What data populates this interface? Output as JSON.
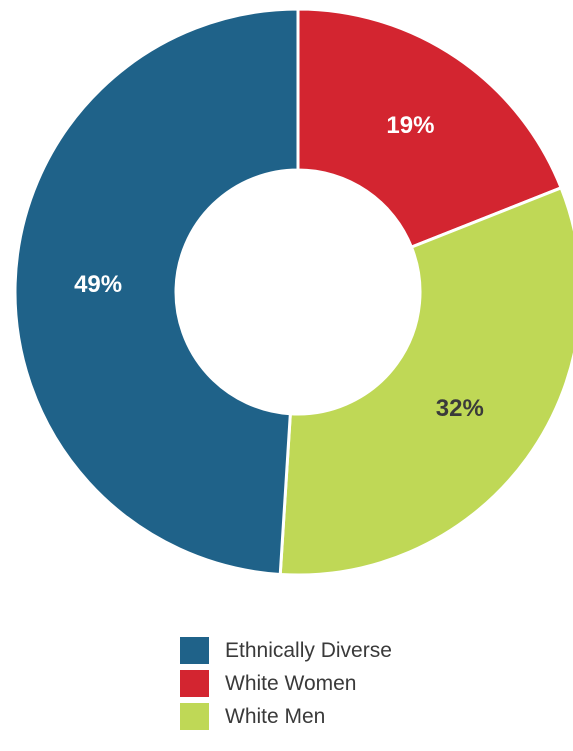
{
  "chart_data": {
    "type": "pie",
    "variant": "donut",
    "title": "",
    "slices": [
      {
        "label": "Ethnically Diverse",
        "value": 49,
        "display": "49%",
        "color": "#1f6289",
        "label_color": "#ffffff"
      },
      {
        "label": "White Women",
        "value": 19,
        "display": "19%",
        "color": "#d32530",
        "label_color": "#ffffff"
      },
      {
        "label": "White Men",
        "value": 32,
        "display": "32%",
        "color": "#bfd856",
        "label_color": "#3a3a3a"
      }
    ],
    "legend_position": "bottom-center"
  }
}
